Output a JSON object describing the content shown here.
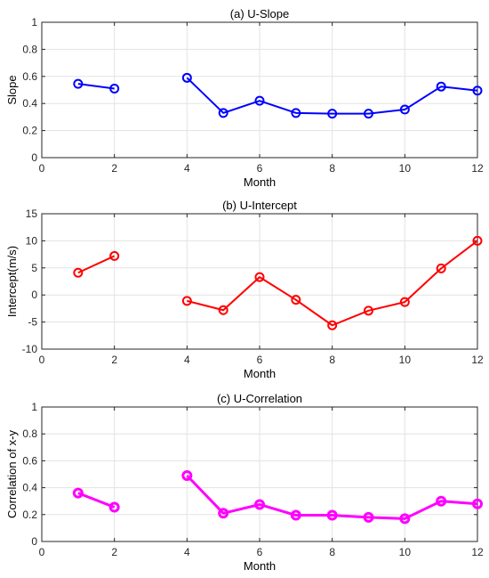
{
  "figure": {
    "xlabel": "Month"
  },
  "chart_data": [
    {
      "type": "line",
      "title": "(a) U-Slope",
      "xlabel": "Month",
      "ylabel": "Slope",
      "xlim": [
        0,
        12
      ],
      "ylim": [
        0,
        1
      ],
      "xticks": [
        0,
        2,
        4,
        6,
        8,
        10,
        12
      ],
      "yticks": [
        0,
        0.2,
        0.4,
        0.6,
        0.8,
        1
      ],
      "grid": true,
      "color": "#0000ff",
      "marker": "circle",
      "segments": [
        [
          [
            1,
            0.545
          ],
          [
            2,
            0.51
          ]
        ],
        [
          [
            4,
            0.59
          ],
          [
            5,
            0.33
          ],
          [
            6,
            0.42
          ],
          [
            7,
            0.33
          ],
          [
            8,
            0.325
          ],
          [
            9,
            0.325
          ],
          [
            10,
            0.355
          ],
          [
            11,
            0.525
          ],
          [
            12,
            0.495
          ]
        ]
      ]
    },
    {
      "type": "line",
      "title": "(b) U-Intercept",
      "xlabel": "Month",
      "ylabel": "Intercept(m/s)",
      "xlim": [
        0,
        12
      ],
      "ylim": [
        -10,
        15
      ],
      "xticks": [
        0,
        2,
        4,
        6,
        8,
        10,
        12
      ],
      "yticks": [
        -10,
        -5,
        0,
        5,
        10,
        15
      ],
      "grid": true,
      "color": "#ff0000",
      "marker": "circle",
      "segments": [
        [
          [
            1,
            4.1
          ],
          [
            2,
            7.2
          ]
        ],
        [
          [
            4,
            -1.1
          ],
          [
            5,
            -2.8
          ],
          [
            6,
            3.3
          ],
          [
            7,
            -0.9
          ],
          [
            8,
            -5.6
          ],
          [
            9,
            -2.9
          ],
          [
            10,
            -1.3
          ],
          [
            11,
            4.9
          ],
          [
            12,
            10.0
          ]
        ]
      ]
    },
    {
      "type": "line",
      "title": "(c) U-Correlation",
      "xlabel": "Month",
      "ylabel": "Correlation of x-y",
      "xlim": [
        0,
        12
      ],
      "ylim": [
        0,
        1
      ],
      "xticks": [
        0,
        2,
        4,
        6,
        8,
        10,
        12
      ],
      "yticks": [
        0,
        0.2,
        0.4,
        0.6,
        0.8,
        1
      ],
      "grid": true,
      "color": "#ff00ff",
      "marker": "circle",
      "segments": [
        [
          [
            1,
            0.36
          ],
          [
            2,
            0.255
          ]
        ],
        [
          [
            4,
            0.49
          ],
          [
            5,
            0.21
          ],
          [
            6,
            0.275
          ],
          [
            7,
            0.195
          ],
          [
            8,
            0.195
          ],
          [
            9,
            0.18
          ],
          [
            10,
            0.17
          ],
          [
            11,
            0.3
          ],
          [
            12,
            0.28
          ]
        ]
      ]
    }
  ]
}
